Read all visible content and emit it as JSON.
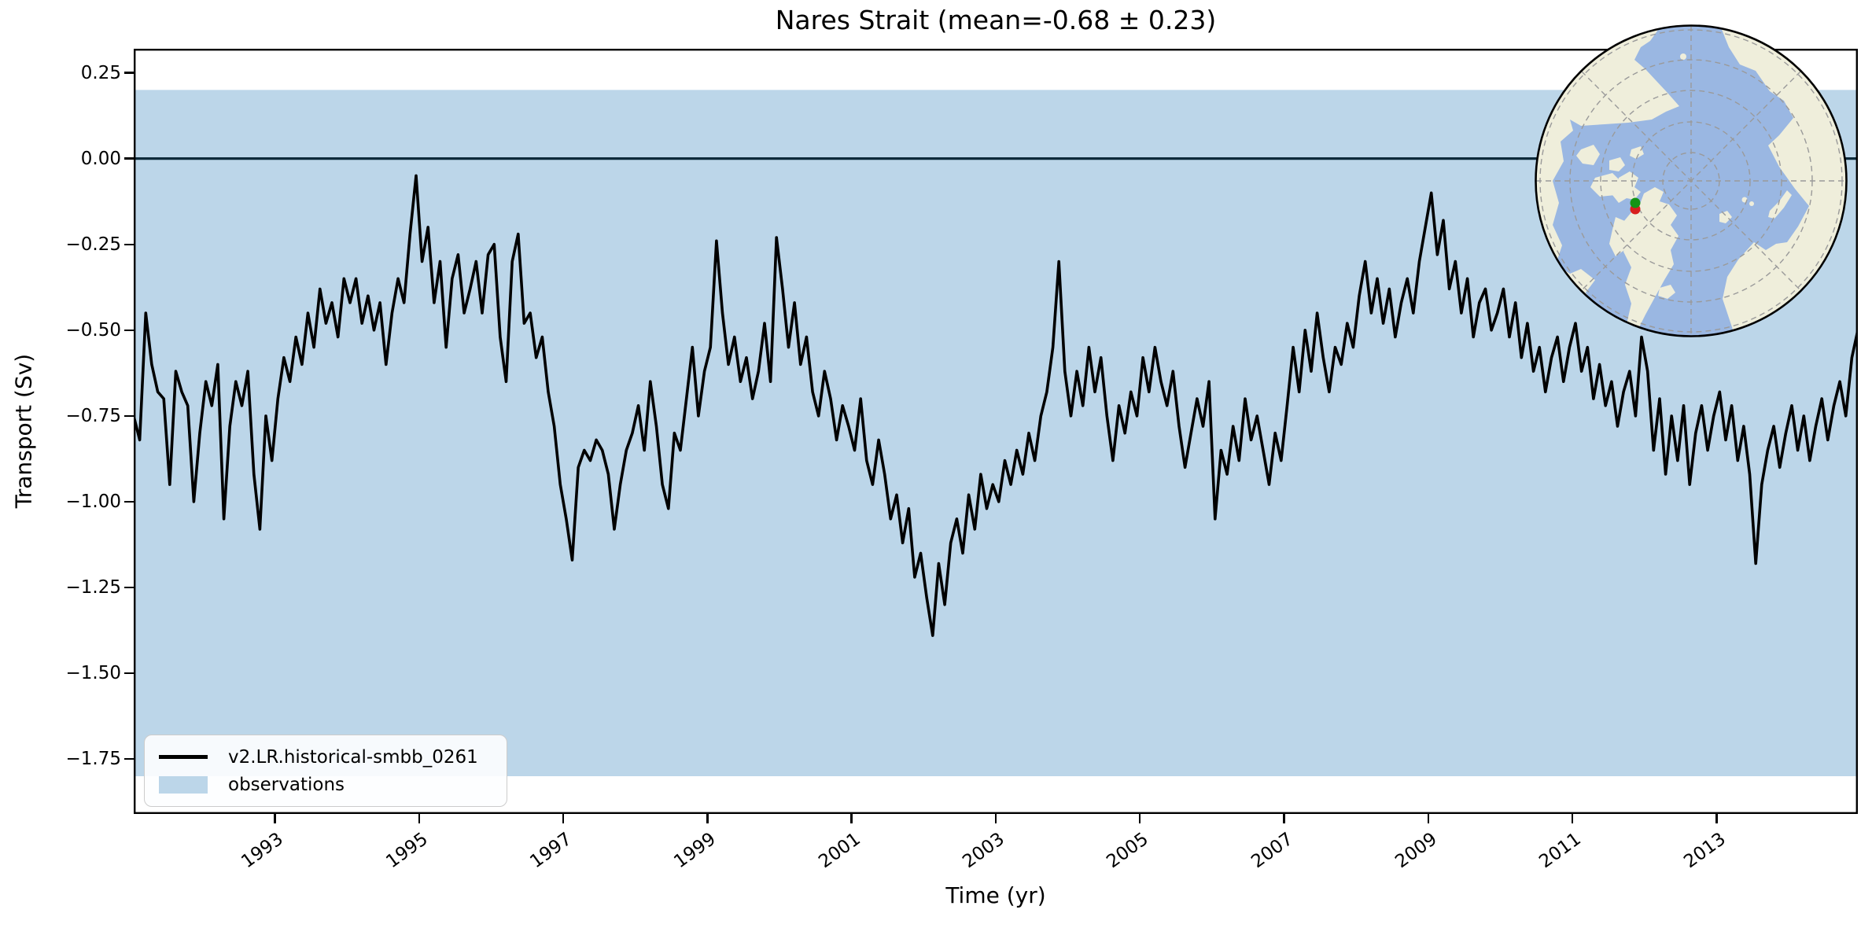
{
  "title": "Nares Strait (mean=-0.68 ± 0.23)",
  "axes": {
    "xlabel": "Time (yr)",
    "ylabel": "Transport (Sv)"
  },
  "legend": {
    "model_label": "v2.LR.historical-smbb_0261",
    "observations_label": "observations"
  },
  "colors": {
    "series": "#000000",
    "band": "#bcd6e9",
    "zero_line": "#0d2a3a",
    "map_ocean": "#9ab7e2",
    "map_land": "#efeedb",
    "map_grid": "#9a9a9a",
    "marker_red": "#d81e1e",
    "marker_green": "#149314"
  },
  "chart_data": {
    "type": "line",
    "title": "Nares Strait (mean=-0.68 ± 0.23)",
    "xlabel": "Time (yr)",
    "ylabel": "Transport (Sv)",
    "xlim": [
      1991.0417,
      2014.9583
    ],
    "ylim": [
      -1.91,
      0.32
    ],
    "grid": false,
    "legend_position": "lower left",
    "xticks": {
      "values": [
        1993,
        1995,
        1997,
        1999,
        2001,
        2003,
        2005,
        2007,
        2009,
        2011,
        2013
      ],
      "labels": [
        "1993",
        "1995",
        "1997",
        "1999",
        "2001",
        "2003",
        "2005",
        "2007",
        "2009",
        "2011",
        "2013"
      ]
    },
    "yticks": {
      "values": [
        0.25,
        0.0,
        -0.25,
        -0.5,
        -0.75,
        -1.0,
        -1.25,
        -1.5,
        -1.75
      ],
      "labels": [
        "0.25",
        "0.00",
        "−0.25",
        "−0.50",
        "−0.75",
        "−1.00",
        "−1.25",
        "−1.50",
        "−1.75"
      ]
    },
    "zero_line": 0.0,
    "observations_band": {
      "label": "observations",
      "ymin": -1.8,
      "ymax": 0.2
    },
    "series": [
      {
        "name": "v2.LR.historical-smbb_0261",
        "color": "#000000",
        "x_start": 1991.0417,
        "x_step": 0.0833333,
        "units": "Sv",
        "values": [
          -0.75,
          -0.82,
          -0.45,
          -0.6,
          -0.68,
          -0.7,
          -0.95,
          -0.62,
          -0.68,
          -0.72,
          -1.0,
          -0.8,
          -0.65,
          -0.72,
          -0.6,
          -1.05,
          -0.78,
          -0.65,
          -0.72,
          -0.62,
          -0.92,
          -1.08,
          -0.75,
          -0.88,
          -0.7,
          -0.58,
          -0.65,
          -0.52,
          -0.6,
          -0.45,
          -0.55,
          -0.38,
          -0.48,
          -0.42,
          -0.52,
          -0.35,
          -0.42,
          -0.35,
          -0.48,
          -0.4,
          -0.5,
          -0.42,
          -0.6,
          -0.45,
          -0.35,
          -0.42,
          -0.22,
          -0.05,
          -0.3,
          -0.2,
          -0.42,
          -0.3,
          -0.55,
          -0.35,
          -0.28,
          -0.45,
          -0.38,
          -0.3,
          -0.45,
          -0.28,
          -0.25,
          -0.52,
          -0.65,
          -0.3,
          -0.22,
          -0.48,
          -0.45,
          -0.58,
          -0.52,
          -0.68,
          -0.78,
          -0.95,
          -1.05,
          -1.17,
          -0.9,
          -0.85,
          -0.88,
          -0.82,
          -0.85,
          -0.92,
          -1.08,
          -0.95,
          -0.85,
          -0.8,
          -0.72,
          -0.85,
          -0.65,
          -0.78,
          -0.95,
          -1.02,
          -0.8,
          -0.85,
          -0.7,
          -0.55,
          -0.75,
          -0.62,
          -0.55,
          -0.24,
          -0.45,
          -0.6,
          -0.52,
          -0.65,
          -0.58,
          -0.7,
          -0.62,
          -0.48,
          -0.65,
          -0.23,
          -0.38,
          -0.55,
          -0.42,
          -0.6,
          -0.52,
          -0.68,
          -0.75,
          -0.62,
          -0.7,
          -0.82,
          -0.72,
          -0.78,
          -0.85,
          -0.7,
          -0.88,
          -0.95,
          -0.82,
          -0.92,
          -1.05,
          -0.98,
          -1.12,
          -1.02,
          -1.22,
          -1.15,
          -1.28,
          -1.39,
          -1.18,
          -1.3,
          -1.12,
          -1.05,
          -1.15,
          -0.98,
          -1.08,
          -0.92,
          -1.02,
          -0.95,
          -1.0,
          -0.88,
          -0.95,
          -0.85,
          -0.92,
          -0.8,
          -0.88,
          -0.75,
          -0.68,
          -0.55,
          -0.3,
          -0.62,
          -0.75,
          -0.62,
          -0.72,
          -0.55,
          -0.68,
          -0.58,
          -0.75,
          -0.88,
          -0.72,
          -0.8,
          -0.68,
          -0.75,
          -0.58,
          -0.68,
          -0.55,
          -0.65,
          -0.72,
          -0.62,
          -0.78,
          -0.9,
          -0.8,
          -0.7,
          -0.78,
          -0.65,
          -1.05,
          -0.85,
          -0.92,
          -0.78,
          -0.88,
          -0.7,
          -0.82,
          -0.75,
          -0.85,
          -0.95,
          -0.8,
          -0.88,
          -0.72,
          -0.55,
          -0.68,
          -0.5,
          -0.62,
          -0.45,
          -0.58,
          -0.68,
          -0.55,
          -0.6,
          -0.48,
          -0.55,
          -0.4,
          -0.3,
          -0.45,
          -0.35,
          -0.48,
          -0.38,
          -0.52,
          -0.42,
          -0.35,
          -0.45,
          -0.3,
          -0.2,
          -0.1,
          -0.28,
          -0.18,
          -0.38,
          -0.3,
          -0.45,
          -0.35,
          -0.52,
          -0.42,
          -0.38,
          -0.5,
          -0.45,
          -0.38,
          -0.52,
          -0.42,
          -0.58,
          -0.48,
          -0.62,
          -0.55,
          -0.68,
          -0.58,
          -0.52,
          -0.65,
          -0.55,
          -0.48,
          -0.62,
          -0.55,
          -0.7,
          -0.6,
          -0.72,
          -0.65,
          -0.78,
          -0.68,
          -0.62,
          -0.75,
          -0.52,
          -0.62,
          -0.85,
          -0.7,
          -0.92,
          -0.75,
          -0.88,
          -0.72,
          -0.95,
          -0.8,
          -0.72,
          -0.85,
          -0.75,
          -0.68,
          -0.82,
          -0.72,
          -0.88,
          -0.78,
          -0.92,
          -1.18,
          -0.95,
          -0.85,
          -0.78,
          -0.9,
          -0.8,
          -0.72,
          -0.85,
          -0.75,
          -0.88,
          -0.78,
          -0.7,
          -0.82,
          -0.72,
          -0.65,
          -0.75,
          -0.58,
          -0.5
        ]
      }
    ],
    "inset_map": {
      "projection": "north-polar",
      "marker_location": "Nares Strait",
      "markers": [
        {
          "name": "model-location",
          "color": "#149314"
        },
        {
          "name": "observation-location",
          "color": "#d81e1e"
        }
      ]
    }
  }
}
